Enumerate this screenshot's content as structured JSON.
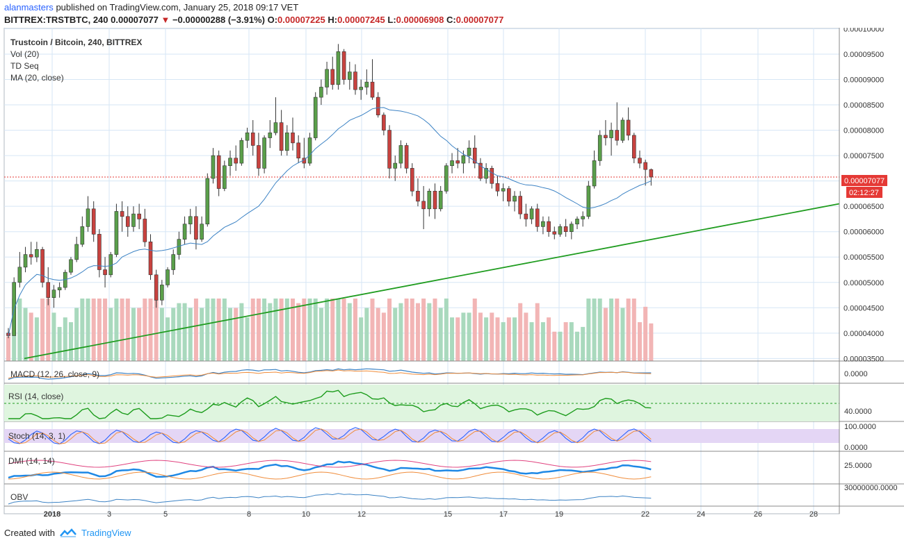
{
  "header": {
    "user": "alanmasters",
    "published_text": "published on TradingView.com, January 25, 2018 09:17 VET",
    "symbol": "BITTREX:TRSTBTC, 240",
    "last": "0.00007077",
    "change_arrow": "▼",
    "change": "−0.00000288 (−3.91%)",
    "o_label": "O:",
    "o_value": "0.00007225",
    "h_label": "H:",
    "h_value": "0.00007245",
    "l_label": "L:",
    "l_value": "0.00006908",
    "c_label": "C:",
    "c_value": "0.00007077"
  },
  "legend": {
    "title": "Trustcoin / Bitcoin, 240, BITTREX",
    "studies": [
      "Vol (20)",
      "TD Seq",
      "MA (20, close)"
    ]
  },
  "price_badge": {
    "price": "0.00007077",
    "countdown": "02:12:27"
  },
  "panes": {
    "macd": {
      "label": "MACD (12, 26, close, 9)",
      "axis": [
        "0.0000"
      ]
    },
    "rsi": {
      "label": "RSI (14, close)",
      "axis": [
        "40.0000"
      ]
    },
    "stoch": {
      "label": "Stoch (14, 3, 1)",
      "axis": [
        "100.0000",
        "0.0000"
      ]
    },
    "dmi": {
      "label": "DMI (14, 14)",
      "axis": [
        "25.0000"
      ]
    },
    "obv": {
      "label": "OBV",
      "axis": [
        "30000000.0000"
      ]
    }
  },
  "footer": {
    "created_with": "Created with",
    "brand": "TradingView"
  },
  "colors": {
    "up": "#5a9f4a",
    "down": "#c8423f",
    "ma": "#3b82c4",
    "trendline": "#1f9c1f",
    "last_price": "#e53935",
    "grid": "#d6e6f5",
    "volume_up": "#a9d9bd",
    "volume_down": "#f2b5b5"
  },
  "chart_data": {
    "type": "candlestick",
    "symbol": "TRSTBTC",
    "exchange": "BITTREX",
    "timeframe": "240",
    "y_axis_ticks": [
      "0.00010000",
      "0.00009500",
      "0.00009000",
      "0.00008500",
      "0.00008000",
      "0.00007500",
      "0.00007000",
      "0.00006500",
      "0.00006000",
      "0.00005500",
      "0.00005000",
      "0.00004500",
      "0.00004000",
      "0.00003500"
    ],
    "ylim": [
      3.45e-05,
      0.0001002
    ],
    "x_axis_ticks": [
      "2018",
      "3",
      "5",
      "8",
      "10",
      "12",
      "15",
      "17",
      "19",
      "22",
      "24",
      "26",
      "28"
    ],
    "ohlc": [
      [
        4e-05,
        4.1e-05,
        3.9e-05,
        3.95e-05
      ],
      [
        3.95e-05,
        5.1e-05,
        3.95e-05,
        5e-05
      ],
      [
        5e-05,
        5.6e-05,
        4.9e-05,
        5.3e-05
      ],
      [
        5.3e-05,
        5.7e-05,
        5.2e-05,
        5.55e-05
      ],
      [
        5.55e-05,
        5.8e-05,
        5.35e-05,
        5.5e-05
      ],
      [
        5.5e-05,
        5.8e-05,
        5.4e-05,
        5.65e-05
      ],
      [
        5.65e-05,
        5.7e-05,
        4.9e-05,
        5e-05
      ],
      [
        5e-05,
        5.3e-05,
        4.55e-05,
        4.7e-05
      ],
      [
        4.7e-05,
        4.95e-05,
        4.5e-05,
        4.85e-05
      ],
      [
        4.85e-05,
        5e-05,
        4.7e-05,
        4.9e-05
      ],
      [
        4.9e-05,
        5.25e-05,
        4.85e-05,
        5.2e-05
      ],
      [
        5.2e-05,
        5.5e-05,
        5.15e-05,
        5.45e-05
      ],
      [
        5.45e-05,
        5.9e-05,
        5.4e-05,
        5.75e-05
      ],
      [
        5.75e-05,
        6.3e-05,
        5.7e-05,
        6.1e-05
      ],
      [
        6.1e-05,
        6.7e-05,
        6e-05,
        6.45e-05
      ],
      [
        6.45e-05,
        6.6e-05,
        5.8e-05,
        5.95e-05
      ],
      [
        5.95e-05,
        6.05e-05,
        5.1e-05,
        5.25e-05
      ],
      [
        5.25e-05,
        5.5e-05,
        4.9e-05,
        5.15e-05
      ],
      [
        5.15e-05,
        5.6e-05,
        5.1e-05,
        5.55e-05
      ],
      [
        5.55e-05,
        6.55e-05,
        5.5e-05,
        6.4e-05
      ],
      [
        6.4e-05,
        6.6e-05,
        6e-05,
        6.3e-05
      ],
      [
        6.3e-05,
        6.5e-05,
        5.9e-05,
        6.1e-05
      ],
      [
        6.1e-05,
        6.5e-05,
        6e-05,
        6.35e-05
      ],
      [
        6.35e-05,
        6.55e-05,
        6.05e-05,
        6.25e-05
      ],
      [
        6.25e-05,
        6.45e-05,
        5.7e-05,
        5.8e-05
      ],
      [
        5.8e-05,
        5.95e-05,
        5.05e-05,
        5.15e-05
      ],
      [
        5.15e-05,
        5.25e-05,
        4.5e-05,
        4.65e-05
      ],
      [
        4.65e-05,
        5.05e-05,
        4.55e-05,
        4.95e-05
      ],
      [
        4.95e-05,
        5.3e-05,
        4.9e-05,
        5.25e-05
      ],
      [
        5.25e-05,
        5.65e-05,
        5.15e-05,
        5.55e-05
      ],
      [
        5.55e-05,
        6e-05,
        5.45e-05,
        5.85e-05
      ],
      [
        5.85e-05,
        6.3e-05,
        5.75e-05,
        6.15e-05
      ],
      [
        6.15e-05,
        6.45e-05,
        5.95e-05,
        6.3e-05
      ],
      [
        6.3e-05,
        6.5e-05,
        5.65e-05,
        5.85e-05
      ],
      [
        5.85e-05,
        6.3e-05,
        5.8e-05,
        6.15e-05
      ],
      [
        6.15e-05,
        7.15e-05,
        6.1e-05,
        7.05e-05
      ],
      [
        7.05e-05,
        7.65e-05,
        6.95e-05,
        7.5e-05
      ],
      [
        7.5e-05,
        7.6e-05,
        6.7e-05,
        6.85e-05
      ],
      [
        6.85e-05,
        7.4e-05,
        6.8e-05,
        7.3e-05
      ],
      [
        7.3e-05,
        7.6e-05,
        7.1e-05,
        7.45e-05
      ],
      [
        7.45e-05,
        7.7e-05,
        7.2e-05,
        7.35e-05
      ],
      [
        7.35e-05,
        7.85e-05,
        7.3e-05,
        7.8e-05
      ],
      [
        7.8e-05,
        8.05e-05,
        7.65e-05,
        7.95e-05
      ],
      [
        7.95e-05,
        8.2e-05,
        7.5e-05,
        7.7e-05
      ],
      [
        7.7e-05,
        7.95e-05,
        7.1e-05,
        7.25e-05
      ],
      [
        7.25e-05,
        7.9e-05,
        7.15e-05,
        7.85e-05
      ],
      [
        7.85e-05,
        8.2e-05,
        7.65e-05,
        7.95e-05
      ],
      [
        7.95e-05,
        8.65e-05,
        7.9e-05,
        8.15e-05
      ],
      [
        8.15e-05,
        8.4e-05,
        7.5e-05,
        7.6e-05
      ],
      [
        7.6e-05,
        8.1e-05,
        7.5e-05,
        7.95e-05
      ],
      [
        7.95e-05,
        8.25e-05,
        7.6e-05,
        7.75e-05
      ],
      [
        7.75e-05,
        7.9e-05,
        7.35e-05,
        7.45e-05
      ],
      [
        7.45e-05,
        7.85e-05,
        7.25e-05,
        7.35e-05
      ],
      [
        7.35e-05,
        7.95e-05,
        7.3e-05,
        7.85e-05
      ],
      [
        7.85e-05,
        8.75e-05,
        7.8e-05,
        8.65e-05
      ],
      [
        8.65e-05,
        9e-05,
        8.5e-05,
        8.85e-05
      ],
      [
        8.85e-05,
        9.35e-05,
        8.7e-05,
        9.2e-05
      ],
      [
        9.2e-05,
        9.45e-05,
        8.8e-05,
        8.9e-05
      ],
      [
        8.9e-05,
        9.7e-05,
        8.8e-05,
        9.55e-05
      ],
      [
        9.55e-05,
        9.6e-05,
        8.9e-05,
        9e-05
      ],
      [
        9e-05,
        9.35e-05,
        8.8e-05,
        9.15e-05
      ],
      [
        9.15e-05,
        9.3e-05,
        8.7e-05,
        8.8e-05
      ],
      [
        8.8e-05,
        9e-05,
        8.6e-05,
        8.85e-05
      ],
      [
        8.85e-05,
        9.2e-05,
        8.7e-05,
        8.95e-05
      ],
      [
        8.95e-05,
        9.4e-05,
        8.6e-05,
        8.65e-05
      ],
      [
        8.65e-05,
        8.75e-05,
        8.25e-05,
        8.3e-05
      ],
      [
        8.3e-05,
        8.35e-05,
        7.9e-05,
        8e-05
      ],
      [
        8e-05,
        8.1e-05,
        7.05e-05,
        7.25e-05
      ],
      [
        7.25e-05,
        7.5e-05,
        7e-05,
        7.35e-05
      ],
      [
        7.35e-05,
        7.8e-05,
        7.25e-05,
        7.7e-05
      ],
      [
        7.7e-05,
        7.75e-05,
        7.15e-05,
        7.25e-05
      ],
      [
        7.25e-05,
        7.35e-05,
        6.7e-05,
        6.8e-05
      ],
      [
        6.8e-05,
        7.05e-05,
        6.5e-05,
        6.6e-05
      ],
      [
        6.6e-05,
        6.9e-05,
        6.05e-05,
        6.45e-05
      ],
      [
        6.45e-05,
        6.85e-05,
        6.3e-05,
        6.8e-05
      ],
      [
        6.8e-05,
        6.95e-05,
        6.25e-05,
        6.45e-05
      ],
      [
        6.45e-05,
        6.9e-05,
        6.4e-05,
        6.8e-05
      ],
      [
        6.8e-05,
        7.35e-05,
        6.75e-05,
        7.3e-05
      ],
      [
        7.3e-05,
        7.55e-05,
        7.15e-05,
        7.4e-05
      ],
      [
        7.4e-05,
        7.65e-05,
        7.25e-05,
        7.35e-05
      ],
      [
        7.35e-05,
        7.6e-05,
        7.15e-05,
        7.5e-05
      ],
      [
        7.5e-05,
        7.8e-05,
        7.35e-05,
        7.65e-05
      ],
      [
        7.65e-05,
        7.9e-05,
        7.25e-05,
        7.35e-05
      ],
      [
        7.35e-05,
        7.45e-05,
        7e-05,
        7.05e-05
      ],
      [
        7.05e-05,
        7.35e-05,
        6.95e-05,
        7.25e-05
      ],
      [
        7.25e-05,
        7.3e-05,
        6.85e-05,
        6.95e-05
      ],
      [
        6.95e-05,
        7.1e-05,
        6.7e-05,
        6.8e-05
      ],
      [
        6.8e-05,
        6.95e-05,
        6.6e-05,
        6.85e-05
      ],
      [
        6.85e-05,
        6.9e-05,
        6.5e-05,
        6.6e-05
      ],
      [
        6.6e-05,
        6.8e-05,
        6.4e-05,
        6.7e-05
      ],
      [
        6.7e-05,
        6.8e-05,
        6.25e-05,
        6.35e-05
      ],
      [
        6.35e-05,
        6.55e-05,
        6.1e-05,
        6.25e-05
      ],
      [
        6.25e-05,
        6.5e-05,
        6.15e-05,
        6.45e-05
      ],
      [
        6.45e-05,
        6.55e-05,
        6e-05,
        6.1e-05
      ],
      [
        6.1e-05,
        6.3e-05,
        5.95e-05,
        6.2e-05
      ],
      [
        6.2e-05,
        6.3e-05,
        5.9e-05,
        6e-05
      ],
      [
        6e-05,
        6.1e-05,
        5.85e-05,
        5.95e-05
      ],
      [
        5.95e-05,
        6.15e-05,
        5.9e-05,
        6.1e-05
      ],
      [
        6.1e-05,
        6.25e-05,
        5.9e-05,
        6e-05
      ],
      [
        6e-05,
        6.2e-05,
        5.85e-05,
        6.15e-05
      ],
      [
        6.15e-05,
        6.3e-05,
        6.05e-05,
        6.25e-05
      ],
      [
        6.25e-05,
        6.4e-05,
        6.1e-05,
        6.3e-05
      ],
      [
        6.3e-05,
        7e-05,
        6.25e-05,
        6.9e-05
      ],
      [
        6.9e-05,
        7.6e-05,
        6.85e-05,
        7.4e-05
      ],
      [
        7.4e-05,
        8e-05,
        7.3e-05,
        7.9e-05
      ],
      [
        7.9e-05,
        8.2e-05,
        7.7e-05,
        7.85e-05
      ],
      [
        7.85e-05,
        8.15e-05,
        7.5e-05,
        8e-05
      ],
      [
        8e-05,
        8.55e-05,
        7.7e-05,
        7.8e-05
      ],
      [
        7.8e-05,
        8.25e-05,
        7.75e-05,
        8.2e-05
      ],
      [
        8.2e-05,
        8.45e-05,
        7.8e-05,
        7.9e-05
      ],
      [
        7.9e-05,
        7.95e-05,
        7.35e-05,
        7.45e-05
      ],
      [
        7.45e-05,
        7.6e-05,
        7.25e-05,
        7.35e-05
      ],
      [
        7.365e-05,
        7.42e-05,
        6.908e-05,
        7.225e-05
      ],
      [
        7.225e-05,
        7.245e-05,
        6.908e-05,
        7.077e-05
      ]
    ],
    "ma20_close": "overlay line",
    "trendline": {
      "from": [
        "2018-01-01",
        3.5e-05
      ],
      "to": [
        "2018-01-28",
        6.55e-05
      ]
    },
    "last_price": 7.077e-05
  }
}
